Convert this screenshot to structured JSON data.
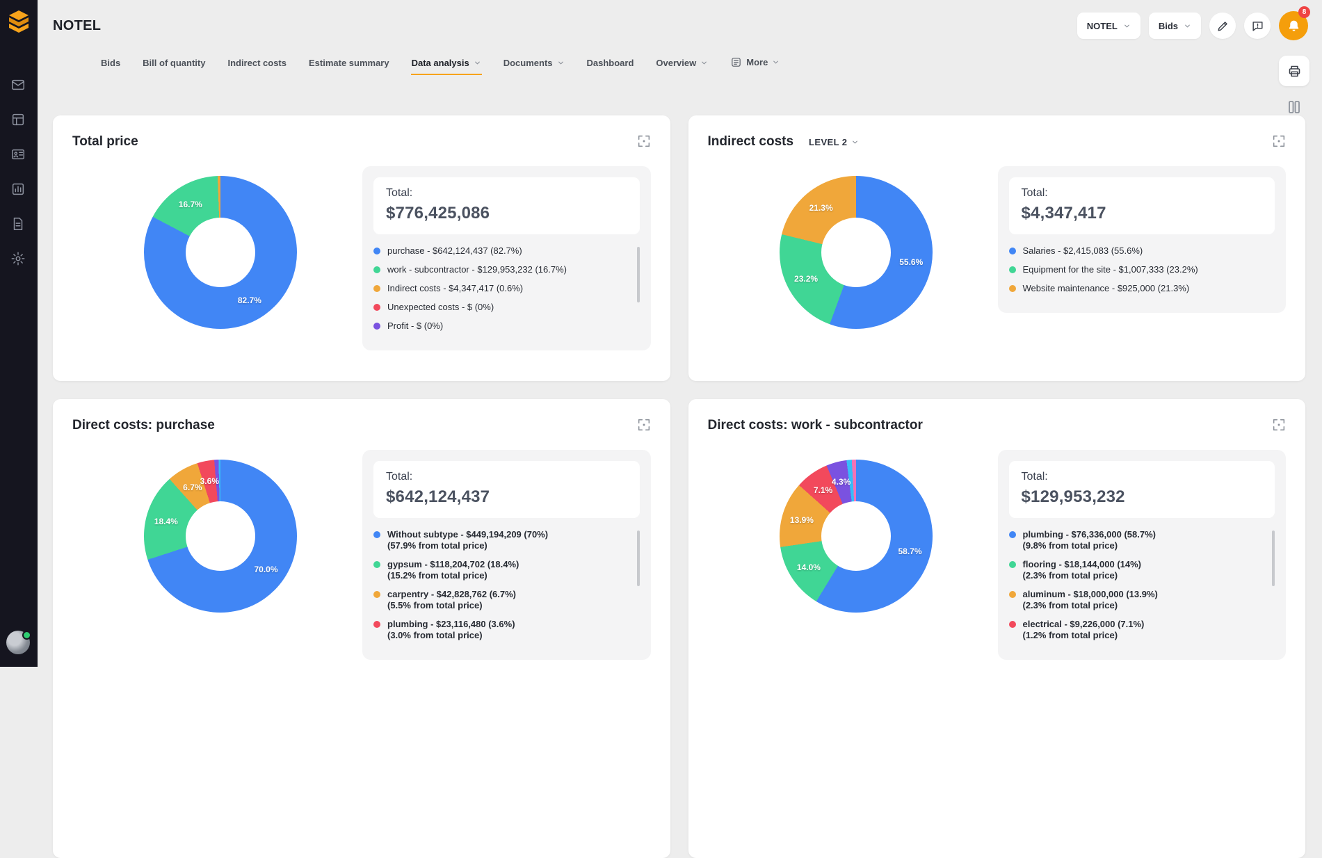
{
  "app_title": "NOTEL",
  "header": {
    "project_selector_label": "NOTEL",
    "bids_selector_label": "Bids",
    "notification_badge": "8"
  },
  "sidebar": {
    "items": [
      "inbox-icon",
      "list-icon",
      "badge-icon",
      "chart-icon",
      "document-icon",
      "settings-icon"
    ]
  },
  "icon_names": [
    "app-logo",
    "edit-icon",
    "feedback-icon",
    "bell-icon",
    "print-icon",
    "layout-columns-icon",
    "expand-icon",
    "chevron-down-icon",
    "user-avatar"
  ],
  "tabs": {
    "items": [
      {
        "label": "Bids",
        "active": false,
        "caret": false
      },
      {
        "label": "Bill of quantity",
        "active": false,
        "caret": false
      },
      {
        "label": "Indirect costs",
        "active": false,
        "caret": false
      },
      {
        "label": "Estimate summary",
        "active": false,
        "caret": false
      },
      {
        "label": "Data analysis",
        "active": true,
        "caret": true
      },
      {
        "label": "Documents",
        "active": false,
        "caret": true
      },
      {
        "label": "Dashboard",
        "active": false,
        "caret": false
      },
      {
        "label": "Overview",
        "active": false,
        "caret": true
      },
      {
        "label": "More",
        "active": false,
        "caret": true,
        "icon": "more"
      }
    ]
  },
  "colors": {
    "accent_orange": "#f7a31b",
    "badge_red": "#ef4444",
    "sidebar_bg": "#15151f",
    "blue": "#4186f5",
    "green": "#40d695",
    "orange": "#f0a73a",
    "red": "#f2495c",
    "purple": "#7a52e0",
    "cyan": "#38bdf8",
    "pink": "#f472b6"
  },
  "cards": [
    {
      "title": "Total price",
      "total_label": "Total:",
      "total_value": "$776,425,086",
      "scrollbar": true,
      "chart_data": {
        "type": "pie",
        "title": "Total price",
        "total": "$776,425,086",
        "slices": [
          {
            "value": 82.7,
            "color": "#4186f5"
          },
          {
            "value": 16.7,
            "color": "#40d695"
          },
          {
            "value": 0.6,
            "color": "#f0a73a"
          }
        ],
        "legend": [
          {
            "text": "purchase - $642,124,437 (82.7%)",
            "color": "#4186f5"
          },
          {
            "text": "work - subcontractor - $129,953,232 (16.7%)",
            "color": "#40d695"
          },
          {
            "text": "Indirect costs - $4,347,417 (0.6%)",
            "color": "#f0a73a"
          },
          {
            "text": "Unexpected costs - $ (0%)",
            "color": "#f2495c"
          },
          {
            "text": "Profit - $ (0%)",
            "color": "#7a52e0"
          }
        ]
      }
    },
    {
      "title": "Indirect costs",
      "level_selector": "LEVEL 2",
      "total_label": "Total:",
      "total_value": "$4,347,417",
      "scrollbar": false,
      "chart_data": {
        "type": "pie",
        "title": "Indirect costs",
        "total": "$4,347,417",
        "slices": [
          {
            "value": 55.6,
            "color": "#4186f5"
          },
          {
            "value": 23.2,
            "color": "#40d695"
          },
          {
            "value": 21.3,
            "color": "#f0a73a"
          }
        ],
        "legend": [
          {
            "text": "Salaries - $2,415,083 (55.6%)",
            "color": "#4186f5"
          },
          {
            "text": "Equipment for the site - $1,007,333 (23.2%)",
            "color": "#40d695"
          },
          {
            "text": "Website maintenance - $925,000 (21.3%)",
            "color": "#f0a73a"
          }
        ]
      }
    },
    {
      "title": "Direct costs: purchase",
      "total_label": "Total:",
      "total_value": "$642,124,437",
      "scrollbar": true,
      "chart_data": {
        "type": "pie",
        "title": "Direct costs: purchase",
        "total": "$642,124,437",
        "slices": [
          {
            "value": 70.0,
            "color": "#4186f5"
          },
          {
            "value": 18.4,
            "color": "#40d695"
          },
          {
            "value": 6.7,
            "color": "#f0a73a"
          },
          {
            "value": 3.6,
            "color": "#f2495c"
          },
          {
            "value": 0.9,
            "color": "#7a52e0"
          },
          {
            "value": 0.4,
            "color": "#38bdf8"
          }
        ],
        "legend": [
          {
            "text": "Without subtype - $449,194,209 (70%)",
            "sub": "(57.9% from total price)",
            "color": "#4186f5"
          },
          {
            "text": "gypsum - $118,204,702 (18.4%)",
            "sub": "(15.2% from total price)",
            "color": "#40d695"
          },
          {
            "text": "carpentry - $42,828,762 (6.7%)",
            "sub": "(5.5% from total price)",
            "color": "#f0a73a"
          },
          {
            "text": "plumbing - $23,116,480 (3.6%)",
            "sub": "(3.0% from total price)",
            "color": "#f2495c"
          }
        ]
      }
    },
    {
      "title": "Direct costs: work - subcontractor",
      "total_label": "Total:",
      "total_value": "$129,953,232",
      "scrollbar": true,
      "chart_data": {
        "type": "pie",
        "title": "Direct costs: work - subcontractor",
        "total": "$129,953,232",
        "slices": [
          {
            "value": 58.7,
            "color": "#4186f5"
          },
          {
            "value": 14.0,
            "color": "#40d695"
          },
          {
            "value": 13.9,
            "color": "#f0a73a"
          },
          {
            "value": 7.1,
            "color": "#f2495c"
          },
          {
            "value": 4.3,
            "color": "#7a52e0"
          },
          {
            "value": 1.1,
            "color": "#38bdf8"
          },
          {
            "value": 0.9,
            "color": "#f472b6"
          }
        ],
        "legend": [
          {
            "text": "plumbing - $76,336,000 (58.7%)",
            "sub": "(9.8% from total price)",
            "color": "#4186f5"
          },
          {
            "text": "flooring - $18,144,000 (14%)",
            "sub": "(2.3% from total price)",
            "color": "#40d695"
          },
          {
            "text": "aluminum - $18,000,000 (13.9%)",
            "sub": "(2.3% from total price)",
            "color": "#f0a73a"
          },
          {
            "text": "electrical - $9,226,000 (7.1%)",
            "sub": "(1.2% from total price)",
            "color": "#f2495c"
          }
        ]
      }
    }
  ]
}
